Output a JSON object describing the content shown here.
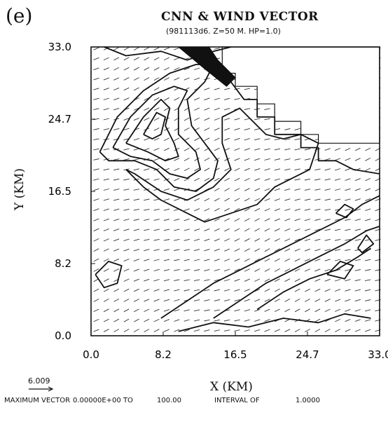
{
  "panel_label": "(e)",
  "legend": {
    "vector_magnitude": "6.009"
  },
  "footer": {
    "max_vector_label": "MAXIMUM VECTOR",
    "range_start": "0.00000E+00 TO",
    "range_end": "100.00",
    "interval_label": "INTERVAL OF",
    "interval_value": "1.0000"
  },
  "chart_data": {
    "type": "contour",
    "title": "CNN & WIND VECTOR",
    "subtitle": "(981113d6. Z=50 M. HP=1.0)",
    "xlabel": "X (KM)",
    "ylabel": "Y (KM)",
    "xlim": [
      0.0,
      33.0
    ],
    "ylim": [
      0.0,
      33.0
    ],
    "x_ticks": [
      "0.0",
      "8.2",
      "16.5",
      "24.7",
      "33.0"
    ],
    "y_ticks": [
      "0.0",
      "8.2",
      "16.5",
      "24.7",
      "33.0"
    ],
    "contour_min": 0,
    "contour_max": 100,
    "contour_interval": 1,
    "contours": [
      {
        "name": "nw-plume-outer",
        "points": [
          [
            1,
            21
          ],
          [
            3,
            25
          ],
          [
            6,
            28
          ],
          [
            9,
            30
          ],
          [
            12,
            31
          ],
          [
            14,
            31
          ],
          [
            13,
            29
          ],
          [
            11,
            27
          ],
          [
            11.5,
            24
          ],
          [
            13,
            22
          ],
          [
            14.5,
            20
          ],
          [
            14,
            18
          ],
          [
            12,
            16.5
          ],
          [
            9.5,
            17
          ],
          [
            7.5,
            19
          ],
          [
            5,
            20
          ],
          [
            2,
            20
          ],
          [
            1,
            21
          ]
        ]
      },
      {
        "name": "nw-plume-mid",
        "points": [
          [
            2.5,
            21.5
          ],
          [
            4.5,
            25
          ],
          [
            7,
            27.5
          ],
          [
            9.5,
            28.5
          ],
          [
            11,
            28
          ],
          [
            10,
            26
          ],
          [
            10,
            23
          ],
          [
            12,
            21
          ],
          [
            12.5,
            19
          ],
          [
            11,
            18
          ],
          [
            9,
            18.5
          ],
          [
            7,
            20
          ],
          [
            4.5,
            20.5
          ],
          [
            2.5,
            21.5
          ]
        ]
      },
      {
        "name": "nw-plume-inner",
        "points": [
          [
            4,
            22
          ],
          [
            6,
            25
          ],
          [
            8,
            27
          ],
          [
            9,
            26
          ],
          [
            8.5,
            24
          ],
          [
            9.5,
            22
          ],
          [
            10,
            20.5
          ],
          [
            8.5,
            20
          ],
          [
            6.5,
            21
          ],
          [
            4,
            22
          ]
        ]
      },
      {
        "name": "nw-core",
        "points": [
          [
            6,
            23
          ],
          [
            7.5,
            25.5
          ],
          [
            8.5,
            25
          ],
          [
            8,
            23
          ],
          [
            7,
            22.5
          ],
          [
            6,
            23
          ]
        ]
      },
      {
        "name": "north-top",
        "points": [
          [
            1.5,
            33
          ],
          [
            4,
            32
          ],
          [
            8,
            32.5
          ],
          [
            11,
            31.5
          ],
          [
            14,
            32.5
          ],
          [
            16,
            33
          ]
        ]
      },
      {
        "name": "central-mass",
        "points": [
          [
            4,
            19
          ],
          [
            6,
            17
          ],
          [
            8,
            15.5
          ],
          [
            11,
            14
          ],
          [
            13,
            13
          ],
          [
            16,
            14
          ],
          [
            19,
            15
          ],
          [
            21,
            17
          ],
          [
            23,
            18
          ],
          [
            25,
            19
          ],
          [
            26,
            22
          ],
          [
            24,
            23
          ],
          [
            22,
            22.5
          ],
          [
            20,
            23
          ],
          [
            18.5,
            24.5
          ],
          [
            17,
            26
          ],
          [
            15,
            25
          ],
          [
            15,
            22
          ],
          [
            16,
            19
          ],
          [
            14,
            17
          ],
          [
            11,
            15.5
          ],
          [
            8,
            16.5
          ],
          [
            5,
            18.5
          ],
          [
            4,
            19
          ]
        ]
      },
      {
        "name": "east-boundary",
        "points": [
          [
            16,
            29
          ],
          [
            17.5,
            27
          ],
          [
            19,
            27
          ],
          [
            19,
            25
          ],
          [
            21,
            25
          ],
          [
            21,
            23
          ],
          [
            24,
            23
          ],
          [
            24,
            21.5
          ],
          [
            26,
            21.5
          ],
          [
            26,
            20
          ],
          [
            28,
            20
          ],
          [
            30,
            19
          ],
          [
            33,
            18.5
          ]
        ]
      },
      {
        "name": "se-plume-outer",
        "points": [
          [
            8,
            2
          ],
          [
            11,
            4
          ],
          [
            14,
            6
          ],
          [
            17,
            7.5
          ],
          [
            20,
            9
          ],
          [
            23,
            10.5
          ],
          [
            26,
            12
          ],
          [
            29,
            13.5
          ],
          [
            31,
            15
          ],
          [
            33,
            16
          ]
        ]
      },
      {
        "name": "se-plume-mid",
        "points": [
          [
            14,
            2
          ],
          [
            17,
            4
          ],
          [
            20,
            6
          ],
          [
            23,
            7.5
          ],
          [
            26,
            9
          ],
          [
            29,
            10.5
          ],
          [
            31.5,
            12
          ],
          [
            33,
            12.5
          ]
        ]
      },
      {
        "name": "se-plume-inner",
        "points": [
          [
            19,
            3
          ],
          [
            22,
            5
          ],
          [
            25,
            6.5
          ],
          [
            28,
            7.5
          ],
          [
            30.5,
            9
          ],
          [
            32,
            10
          ]
        ]
      },
      {
        "name": "se-core-1",
        "points": [
          [
            27,
            7
          ],
          [
            28.5,
            8.5
          ],
          [
            30,
            8
          ],
          [
            29,
            6.5
          ],
          [
            27,
            7
          ]
        ]
      },
      {
        "name": "se-core-2",
        "points": [
          [
            30.5,
            10
          ],
          [
            31.5,
            11.5
          ],
          [
            32.3,
            10.5
          ],
          [
            31,
            9.5
          ],
          [
            30.5,
            10
          ]
        ]
      },
      {
        "name": "se-low",
        "points": [
          [
            10,
            0.5
          ],
          [
            14,
            1.5
          ],
          [
            18,
            1
          ],
          [
            22,
            2
          ],
          [
            26,
            1.5
          ],
          [
            29,
            2.5
          ],
          [
            32,
            2
          ]
        ]
      },
      {
        "name": "west-patch",
        "points": [
          [
            0.5,
            7
          ],
          [
            2,
            8.5
          ],
          [
            3.5,
            8
          ],
          [
            3,
            6
          ],
          [
            1.5,
            5.5
          ],
          [
            0.5,
            7
          ]
        ]
      },
      {
        "name": "east-island",
        "points": [
          [
            28,
            14
          ],
          [
            29,
            15
          ],
          [
            30,
            14.5
          ],
          [
            29.2,
            13.5
          ],
          [
            28,
            14
          ]
        ]
      }
    ],
    "masked_region": [
      [
        15,
        33
      ],
      [
        33,
        33
      ],
      [
        33,
        22
      ],
      [
        26,
        22
      ],
      [
        26,
        23
      ],
      [
        24,
        23
      ],
      [
        24,
        24.5
      ],
      [
        21,
        24.5
      ],
      [
        21,
        26.5
      ],
      [
        19,
        26.5
      ],
      [
        19,
        28.5
      ],
      [
        16.5,
        28.5
      ],
      [
        16.5,
        30
      ],
      [
        15,
        30
      ],
      [
        15,
        33
      ]
    ],
    "dense_region": [
      [
        10,
        33
      ],
      [
        13,
        30.5
      ],
      [
        15.5,
        28.5
      ],
      [
        16.5,
        29.5
      ],
      [
        14.5,
        31.5
      ],
      [
        13.5,
        33
      ]
    ]
  }
}
